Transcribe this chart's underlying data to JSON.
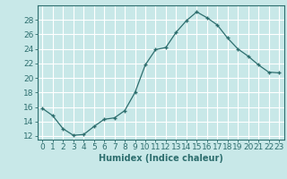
{
  "x": [
    0,
    1,
    2,
    3,
    4,
    5,
    6,
    7,
    8,
    9,
    10,
    11,
    12,
    13,
    14,
    15,
    16,
    17,
    18,
    19,
    20,
    21,
    22,
    23
  ],
  "y": [
    15.8,
    14.8,
    13.0,
    12.1,
    12.2,
    13.3,
    14.3,
    14.5,
    15.5,
    18.0,
    21.8,
    23.9,
    24.2,
    26.3,
    27.9,
    29.1,
    28.3,
    27.3,
    25.5,
    24.0,
    23.0,
    21.8,
    20.8,
    20.7
  ],
  "line_color": "#2d6e6e",
  "marker": "+",
  "marker_size": 3,
  "bg_color": "#c8e8e8",
  "grid_color": "#ffffff",
  "xlabel": "Humidex (Indice chaleur)",
  "ylabel_ticks": [
    12,
    14,
    16,
    18,
    20,
    22,
    24,
    26,
    28
  ],
  "ylim": [
    11.5,
    30.0
  ],
  "xlim": [
    -0.5,
    23.5
  ],
  "xlabel_fontsize": 7,
  "tick_fontsize": 6.5
}
